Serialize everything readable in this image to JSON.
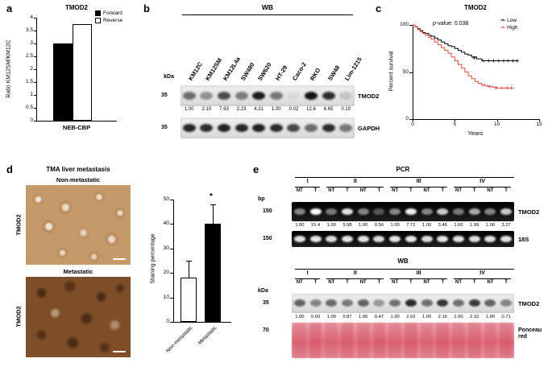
{
  "panel_a": {
    "letter": "a",
    "title": "TMOD2",
    "ylabel": "Ratio KM12SM/KM12C",
    "xlabel": "NEB-CBP",
    "legend": [
      {
        "label": "Forward",
        "fill": "#000000"
      },
      {
        "label": "Reverse",
        "fill": "#ffffff"
      }
    ],
    "chart": {
      "type": "bar",
      "categories": [
        "Forward",
        "Reverse"
      ],
      "values": [
        3.0,
        3.75
      ],
      "ymax": 4,
      "yticks": [
        0,
        0.5,
        1,
        1.5,
        2,
        2.5,
        3,
        3.5,
        4
      ]
    }
  },
  "panel_b": {
    "letter": "b",
    "title": "WB",
    "unit_label": "kDa",
    "lanes": [
      "KM12C",
      "KM12SM",
      "KM12L4a",
      "SW480",
      "SW620",
      "HT-29",
      "Caco-2",
      "RKO",
      "SW48",
      "Lim-1215"
    ],
    "blots": [
      {
        "marker": "35",
        "name": "TMOD2",
        "values": [
          "1.00",
          "2.10",
          "7.93",
          "2.23",
          "4.21",
          "1.00",
          "0.02",
          "12.6",
          "6.65",
          "0.10"
        ],
        "band_intensity": [
          0.55,
          0.38,
          0.7,
          0.48,
          0.92,
          0.5,
          0.05,
          0.97,
          0.85,
          0.15
        ]
      },
      {
        "marker": "35",
        "name": "GAPDH",
        "values": null,
        "band_intensity": [
          0.88,
          0.85,
          0.9,
          0.88,
          0.9,
          0.85,
          0.72,
          0.55,
          0.85,
          0.5
        ]
      }
    ]
  },
  "panel_c": {
    "letter": "c",
    "title": "TMOD2",
    "pvalue_p": "p",
    "pvalue_rest": "-value: 0.038",
    "ylabel": "Percent survival",
    "xlabel": "Years",
    "legend": [
      {
        "label": "Low",
        "color": "#000000"
      },
      {
        "label": "High",
        "color": "#e8493f"
      }
    ],
    "chart": {
      "type": "line",
      "xticks": [
        0,
        5,
        10,
        15
      ],
      "yticks": [
        0,
        50,
        100
      ],
      "xmax": 15,
      "ymax": 100,
      "series": [
        {
          "name": "Low",
          "color": "#000000",
          "points": [
            [
              0,
              100
            ],
            [
              0.3,
              98
            ],
            [
              0.6,
              96
            ],
            [
              0.9,
              94
            ],
            [
              1.2,
              92
            ],
            [
              1.5,
              91
            ],
            [
              1.9,
              89
            ],
            [
              2.2,
              88
            ],
            [
              2.6,
              86
            ],
            [
              3,
              84
            ],
            [
              3.4,
              82
            ],
            [
              3.8,
              80
            ],
            [
              4.2,
              78
            ],
            [
              4.6,
              77
            ],
            [
              5,
              75
            ],
            [
              5.4,
              73
            ],
            [
              5.8,
              71
            ],
            [
              6.2,
              69
            ],
            [
              6.6,
              68
            ],
            [
              7,
              66
            ],
            [
              7.6,
              64
            ],
            [
              8.2,
              62
            ],
            [
              12.6,
              62
            ]
          ],
          "censors": [
            [
              7.3,
              65
            ],
            [
              8.4,
              62
            ],
            [
              9,
              62
            ],
            [
              9.6,
              62
            ],
            [
              10.2,
              62
            ],
            [
              10.8,
              62
            ],
            [
              11.3,
              62
            ],
            [
              11.9,
              62
            ],
            [
              12.4,
              62
            ]
          ]
        },
        {
          "name": "High",
          "color": "#e8493f",
          "points": [
            [
              0,
              100
            ],
            [
              0.3,
              98
            ],
            [
              0.6,
              95
            ],
            [
              0.9,
              93
            ],
            [
              1.2,
              91
            ],
            [
              1.5,
              89
            ],
            [
              1.9,
              87
            ],
            [
              2.2,
              85
            ],
            [
              2.6,
              82
            ],
            [
              3,
              79
            ],
            [
              3.4,
              76
            ],
            [
              3.8,
              73
            ],
            [
              4.2,
              70
            ],
            [
              4.6,
              66
            ],
            [
              5,
              62
            ],
            [
              5.4,
              58
            ],
            [
              5.8,
              54
            ],
            [
              6.2,
              50
            ],
            [
              6.6,
              46
            ],
            [
              7,
              43
            ],
            [
              7.4,
              40
            ],
            [
              7.8,
              38
            ],
            [
              8.2,
              36
            ],
            [
              8.8,
              35
            ],
            [
              9.4,
              34
            ],
            [
              10,
              33
            ],
            [
              12,
              33
            ]
          ],
          "censors": [
            [
              8.5,
              36
            ],
            [
              9.1,
              34.5
            ],
            [
              9.9,
              33
            ],
            [
              10.6,
              33
            ],
            [
              11.2,
              33
            ],
            [
              11.7,
              33
            ]
          ]
        }
      ]
    }
  },
  "panel_d": {
    "letter": "d",
    "title": "TMA liver metastasis",
    "images": [
      {
        "caption": "Non-metastatic",
        "side_label": "TMOD2"
      },
      {
        "caption": "Metastatic",
        "side_label": "TMOD2"
      }
    ],
    "chart": {
      "type": "bar",
      "ylabel": "Staining percentage",
      "categories": [
        "Non-metastatic",
        "Metastatic"
      ],
      "values": [
        18,
        40
      ],
      "errors": [
        7,
        8
      ],
      "fills": [
        "#ffffff",
        "#000000"
      ],
      "ymax": 50,
      "yticks": [
        0,
        10,
        20,
        30,
        40,
        50
      ],
      "significance": "*"
    }
  },
  "panel_e": {
    "letter": "e",
    "sections": [
      {
        "title": "PCR",
        "unit_label": "bp",
        "groups": [
          {
            "label": "I",
            "lanes": 2
          },
          {
            "label": "II",
            "lanes": 4
          },
          {
            "label": "III",
            "lanes": 4
          },
          {
            "label": "IV",
            "lanes": 4
          }
        ],
        "lane_labels": [
          "NT",
          "T",
          "NT",
          "T",
          "NT",
          "T",
          "NT",
          "T",
          "NT",
          "T",
          "NT",
          "T",
          "NT",
          "T"
        ],
        "blots": [
          {
            "marker": "150",
            "name": "TMOD2",
            "style": "pcr",
            "values": [
              "1.00",
              "15.4",
              "1.00",
              "5.98",
              "1.00",
              "0.56",
              "1.00",
              "7.71",
              "1.00",
              "3.46",
              "1.00",
              "1.99",
              "1.00",
              "3.27"
            ],
            "band_intensity": [
              0.5,
              1.0,
              0.45,
              0.9,
              0.5,
              0.3,
              0.5,
              0.95,
              0.5,
              0.8,
              0.45,
              0.65,
              0.5,
              0.8
            ]
          },
          {
            "marker": "150",
            "name": "18S",
            "style": "pcr",
            "values": null,
            "band_intensity": [
              0.9,
              0.92,
              0.88,
              0.9,
              0.9,
              0.88,
              0.9,
              0.92,
              0.88,
              0.9,
              0.9,
              0.88,
              0.9,
              0.9
            ]
          }
        ]
      },
      {
        "title": "WB",
        "unit_label": "kDa",
        "groups": [
          {
            "label": "I",
            "lanes": 2
          },
          {
            "label": "II",
            "lanes": 4
          },
          {
            "label": "III",
            "lanes": 4
          },
          {
            "label": "IV",
            "lanes": 4
          }
        ],
        "lane_labels": [
          "NT",
          "T",
          "NT",
          "T",
          "NT",
          "T",
          "NT",
          "T",
          "NT",
          "T",
          "NT",
          "T",
          "NT",
          "T"
        ],
        "blots": [
          {
            "marker": "35",
            "name": "TMOD2",
            "style": "wb",
            "values": [
              "1.00",
              "0.60",
              "1.00",
              "0.87",
              "1.00",
              "0.47",
              "1.00",
              "2.62",
              "1.00",
              "2.16",
              "1.00",
              "2.10",
              "1.00",
              "0.71"
            ],
            "band_intensity": [
              0.6,
              0.45,
              0.58,
              0.5,
              0.62,
              0.35,
              0.55,
              0.88,
              0.55,
              0.82,
              0.55,
              0.8,
              0.6,
              0.45
            ]
          },
          {
            "marker": "70",
            "name": "Ponceau red",
            "style": "ponceau",
            "values": null,
            "band_intensity": [
              0.5,
              0.62,
              0.48,
              0.6,
              0.52,
              0.58,
              0.5,
              0.62,
              0.48,
              0.6,
              0.52,
              0.58,
              0.5,
              0.6
            ]
          }
        ]
      }
    ]
  }
}
